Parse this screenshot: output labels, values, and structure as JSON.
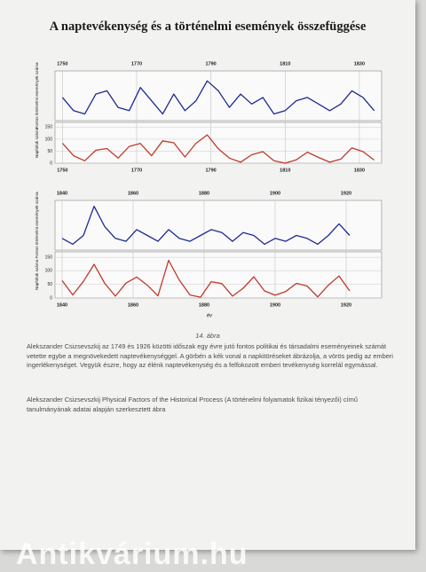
{
  "document": {
    "title": "A naptevékenység és a történelmi események összefüggése",
    "caption": "14. ábra",
    "paragraphs": [
      "Alekszander Csizsevszkij az 1749 és 1926 közötti időszak egy évre jutó fontos politikai és társadalmi eseményeinek számát vetette egybe a megnövekedett naptevékenységgel. A görbén a kék vonal a napkitöréseket ábrázolja, a vörös pedig az emberi ingerlékenységet. Vegyük észre, hogy az élénk naptevékenység és a felfokozott emberi tevékenység korrelál egymással.",
      "Alekszander Csizsevszkij Physical Factors of the Historical Process (A történelmi folyamatok fizikai tényezői) című tanulmányának adatai alapján szerkesztett ábra"
    ],
    "x_label": "év",
    "watermark": "Antikvárium.hu"
  },
  "chart_data": [
    {
      "type": "line",
      "ylabel": "Fontos történelmi események száma",
      "x": [
        1750,
        1753,
        1756,
        1759,
        1762,
        1765,
        1768,
        1771,
        1774,
        1777,
        1780,
        1783,
        1786,
        1789,
        1792,
        1795,
        1798,
        1801,
        1804,
        1807,
        1810,
        1813,
        1816,
        1819,
        1822,
        1825,
        1828,
        1831,
        1834
      ],
      "xlim": [
        1748,
        1836
      ],
      "xticks": [
        1750,
        1770,
        1790,
        1810,
        1830
      ],
      "ylim": [
        -1,
        14
      ],
      "series": [
        {
          "color": "#1f2a94",
          "values": [
            6,
            2,
            1,
            7,
            8,
            3,
            2,
            9,
            5,
            1,
            7,
            2,
            5,
            11,
            8,
            3,
            7,
            4,
            6,
            1,
            2,
            5,
            6,
            4,
            2,
            4,
            8,
            6,
            2
          ]
        }
      ]
    },
    {
      "type": "line",
      "ylabel": "Napfoltok száma",
      "x": [
        1750,
        1753,
        1756,
        1759,
        1762,
        1765,
        1768,
        1771,
        1774,
        1777,
        1780,
        1783,
        1786,
        1789,
        1792,
        1795,
        1798,
        1801,
        1804,
        1807,
        1810,
        1813,
        1816,
        1819,
        1822,
        1825,
        1828,
        1831,
        1834
      ],
      "xlim": [
        1748,
        1836
      ],
      "xticks": [
        1750,
        1770,
        1790,
        1810,
        1830
      ],
      "ylim": [
        0,
        170
      ],
      "yticks": [
        0,
        50,
        100,
        150
      ],
      "grid": true,
      "series": [
        {
          "color": "#c0392b",
          "values": [
            83,
            31,
            10,
            54,
            61,
            21,
            70,
            82,
            31,
            93,
            85,
            26,
            83,
            118,
            60,
            21,
            4,
            35,
            48,
            10,
            0,
            14,
            46,
            24,
            4,
            17,
            64,
            48,
            13
          ]
        }
      ]
    },
    {
      "type": "line",
      "ylabel": "Fontos történelmi események száma",
      "x": [
        1840,
        1843,
        1846,
        1849,
        1852,
        1855,
        1858,
        1861,
        1864,
        1867,
        1870,
        1873,
        1876,
        1879,
        1882,
        1885,
        1888,
        1891,
        1894,
        1897,
        1900,
        1903,
        1906,
        1909,
        1912,
        1915,
        1918,
        1921
      ],
      "xlim": [
        1838,
        1930
      ],
      "xticks": [
        1840,
        1860,
        1880,
        1900,
        1920
      ],
      "ylim": [
        0,
        17
      ],
      "series": [
        {
          "color": "#1f2a94",
          "values": [
            4,
            2,
            5,
            15,
            8,
            4,
            3,
            7,
            5,
            3,
            7,
            4,
            3,
            5,
            7,
            6,
            3,
            6,
            5,
            2,
            4,
            3,
            5,
            4,
            2,
            5,
            9,
            5
          ]
        }
      ]
    },
    {
      "type": "line",
      "ylabel": "Napfoltok száma",
      "x": [
        1840,
        1843,
        1846,
        1849,
        1852,
        1855,
        1858,
        1861,
        1864,
        1867,
        1870,
        1873,
        1876,
        1879,
        1882,
        1885,
        1888,
        1891,
        1894,
        1897,
        1900,
        1903,
        1906,
        1909,
        1912,
        1915,
        1918,
        1921
      ],
      "xlim": [
        1838,
        1930
      ],
      "xticks": [
        1840,
        1860,
        1880,
        1900,
        1920
      ],
      "ylim": [
        0,
        170
      ],
      "yticks": [
        0,
        50,
        100,
        150
      ],
      "grid": true,
      "series": [
        {
          "color": "#c0392b",
          "values": [
            64,
            11,
            61,
            124,
            54,
            7,
            55,
            77,
            47,
            8,
            139,
            66,
            11,
            3,
            60,
            53,
            7,
            36,
            78,
            26,
            10,
            24,
            54,
            44,
            4,
            47,
            81,
            26
          ]
        }
      ]
    }
  ]
}
